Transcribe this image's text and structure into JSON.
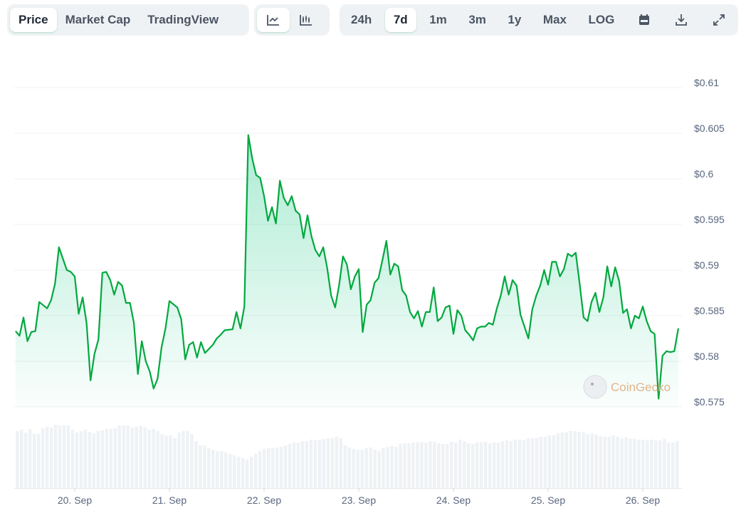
{
  "toolbar": {
    "view_tabs": [
      {
        "label": "Price",
        "active": true
      },
      {
        "label": "Market Cap",
        "active": false
      },
      {
        "label": "TradingView",
        "active": false
      }
    ],
    "chart_types": [
      {
        "icon": "line-chart-icon",
        "active": true
      },
      {
        "icon": "candlestick-chart-icon",
        "active": false
      }
    ],
    "ranges": [
      {
        "label": "24h",
        "active": false
      },
      {
        "label": "7d",
        "active": true
      },
      {
        "label": "1m",
        "active": false
      },
      {
        "label": "3m",
        "active": false
      },
      {
        "label": "1y",
        "active": false
      },
      {
        "label": "Max",
        "active": false
      },
      {
        "label": "LOG",
        "active": false
      }
    ],
    "actions": [
      {
        "icon": "calendar-icon"
      },
      {
        "icon": "download-icon"
      },
      {
        "icon": "fullscreen-icon"
      }
    ]
  },
  "watermark": "CoinGecko",
  "colors": {
    "line": "#00a83e",
    "volume": "#eff2f5",
    "grid": "#eef0f3",
    "accent": "#16c784"
  },
  "chart_data": {
    "type": "line",
    "ylim": [
      0.575,
      0.61
    ],
    "yticks": [
      "$0.575",
      "$0.58",
      "$0.585",
      "$0.59",
      "$0.595",
      "$0.6",
      "$0.605",
      "$0.61"
    ],
    "ytick_values": [
      0.575,
      0.58,
      0.585,
      0.59,
      0.595,
      0.6,
      0.605,
      0.61
    ],
    "xticks": [
      "20. Sep",
      "21. Sep",
      "22. Sep",
      "23. Sep",
      "24. Sep",
      "25. Sep",
      "26. Sep"
    ],
    "grid": true,
    "fill": "gradient",
    "series": [
      {
        "points": [
          [
            "19 Sep 09:00",
            0.5833
          ],
          [
            "19 Sep 10:00",
            0.5828
          ],
          [
            "19 Sep 11:00",
            0.5848
          ],
          [
            "19 Sep 12:00",
            0.5822
          ],
          [
            "19 Sep 13:00",
            0.5832
          ],
          [
            "19 Sep 14:00",
            0.5833
          ],
          [
            "19 Sep 15:00",
            0.5865
          ],
          [
            "19 Sep 17:00",
            0.5858
          ],
          [
            "19 Sep 18:00",
            0.5867
          ],
          [
            "19 Sep 19:00",
            0.5885
          ],
          [
            "19 Sep 20:00",
            0.5925
          ],
          [
            "19 Sep 22:00",
            0.59
          ],
          [
            "19 Sep 23:00",
            0.5898
          ],
          [
            "20 Sep 00:00",
            0.5893
          ],
          [
            "20 Sep 01:00",
            0.5852
          ],
          [
            "20 Sep 02:00",
            0.587
          ],
          [
            "20 Sep 03:00",
            0.5842
          ],
          [
            "20 Sep 04:00",
            0.5779
          ],
          [
            "20 Sep 05:00",
            0.5808
          ],
          [
            "20 Sep 06:00",
            0.5824
          ],
          [
            "20 Sep 07:00",
            0.5897
          ],
          [
            "20 Sep 08:00",
            0.5898
          ],
          [
            "20 Sep 09:00",
            0.5889
          ],
          [
            "20 Sep 10:00",
            0.5873
          ],
          [
            "20 Sep 11:00",
            0.5887
          ],
          [
            "20 Sep 12:00",
            0.5883
          ],
          [
            "20 Sep 13:00",
            0.5864
          ],
          [
            "20 Sep 14:00",
            0.5864
          ],
          [
            "20 Sep 15:00",
            0.5842
          ],
          [
            "20 Sep 16:00",
            0.5786
          ],
          [
            "20 Sep 17:00",
            0.5822
          ],
          [
            "20 Sep 18:00",
            0.58
          ],
          [
            "20 Sep 19:00",
            0.5789
          ],
          [
            "20 Sep 20:00",
            0.577
          ],
          [
            "20 Sep 21:00",
            0.5781
          ],
          [
            "20 Sep 22:00",
            0.5815
          ],
          [
            "20 Sep 23:00",
            0.5836
          ],
          [
            "21 Sep 00:00",
            0.5866
          ],
          [
            "21 Sep 02:00",
            0.5859
          ],
          [
            "21 Sep 03:00",
            0.5846
          ],
          [
            "21 Sep 04:00",
            0.5802
          ],
          [
            "21 Sep 05:00",
            0.5818
          ],
          [
            "21 Sep 06:00",
            0.5821
          ],
          [
            "21 Sep 07:00",
            0.5804
          ],
          [
            "21 Sep 08:00",
            0.5821
          ],
          [
            "21 Sep 09:00",
            0.5809
          ],
          [
            "21 Sep 11:00",
            0.5818
          ],
          [
            "21 Sep 12:00",
            0.5825
          ],
          [
            "21 Sep 13:00",
            0.5829
          ],
          [
            "21 Sep 14:00",
            0.5834
          ],
          [
            "21 Sep 16:00",
            0.5835
          ],
          [
            "21 Sep 17:00",
            0.5854
          ],
          [
            "21 Sep 18:00",
            0.5836
          ],
          [
            "21 Sep 19:00",
            0.586
          ],
          [
            "21 Sep 20:00",
            0.6048
          ],
          [
            "21 Sep 21:00",
            0.6022
          ],
          [
            "21 Sep 22:00",
            0.6004
          ],
          [
            "21 Sep 23:00",
            0.6001
          ],
          [
            "22 Sep 00:00",
            0.5981
          ],
          [
            "22 Sep 01:00",
            0.5954
          ],
          [
            "22 Sep 02:00",
            0.5969
          ],
          [
            "22 Sep 03:00",
            0.5951
          ],
          [
            "22 Sep 04:00",
            0.5998
          ],
          [
            "22 Sep 05:00",
            0.5979
          ],
          [
            "22 Sep 06:00",
            0.5971
          ],
          [
            "22 Sep 07:00",
            0.5981
          ],
          [
            "22 Sep 08:00",
            0.5965
          ],
          [
            "22 Sep 09:00",
            0.5961
          ],
          [
            "22 Sep 10:00",
            0.5935
          ],
          [
            "22 Sep 11:00",
            0.596
          ],
          [
            "22 Sep 12:00",
            0.5937
          ],
          [
            "22 Sep 13:00",
            0.5922
          ],
          [
            "22 Sep 14:00",
            0.5915
          ],
          [
            "22 Sep 15:00",
            0.5925
          ],
          [
            "22 Sep 16:00",
            0.5902
          ],
          [
            "22 Sep 17:00",
            0.5872
          ],
          [
            "22 Sep 18:00",
            0.5859
          ],
          [
            "22 Sep 19:00",
            0.5883
          ],
          [
            "22 Sep 20:00",
            0.5915
          ],
          [
            "22 Sep 21:00",
            0.5906
          ],
          [
            "22 Sep 22:00",
            0.5879
          ],
          [
            "22 Sep 23:00",
            0.5893
          ],
          [
            "23 Sep 00:00",
            0.5901
          ],
          [
            "23 Sep 01:00",
            0.5832
          ],
          [
            "23 Sep 02:00",
            0.5862
          ],
          [
            "23 Sep 03:00",
            0.5867
          ],
          [
            "23 Sep 04:00",
            0.5886
          ],
          [
            "23 Sep 05:00",
            0.5891
          ],
          [
            "23 Sep 06:00",
            0.5911
          ],
          [
            "23 Sep 07:00",
            0.5932
          ],
          [
            "23 Sep 08:00",
            0.5895
          ],
          [
            "23 Sep 09:00",
            0.5907
          ],
          [
            "23 Sep 10:00",
            0.5904
          ],
          [
            "23 Sep 11:00",
            0.5878
          ],
          [
            "23 Sep 12:00",
            0.5872
          ],
          [
            "23 Sep 13:00",
            0.5854
          ],
          [
            "23 Sep 14:00",
            0.5847
          ],
          [
            "23 Sep 15:00",
            0.5855
          ],
          [
            "23 Sep 16:00",
            0.5838
          ],
          [
            "23 Sep 17:00",
            0.5854
          ],
          [
            "23 Sep 18:00",
            0.5854
          ],
          [
            "23 Sep 19:00",
            0.5881
          ],
          [
            "23 Sep 20:00",
            0.5844
          ],
          [
            "23 Sep 21:00",
            0.5848
          ],
          [
            "23 Sep 22:00",
            0.5859
          ],
          [
            "23 Sep 23:00",
            0.5861
          ],
          [
            "24 Sep 00:00",
            0.583
          ],
          [
            "24 Sep 01:00",
            0.5856
          ],
          [
            "24 Sep 02:00",
            0.585
          ],
          [
            "24 Sep 03:00",
            0.5834
          ],
          [
            "24 Sep 04:00",
            0.5829
          ],
          [
            "24 Sep 05:00",
            0.5823
          ],
          [
            "24 Sep 06:00",
            0.5836
          ],
          [
            "24 Sep 07:00",
            0.5838
          ],
          [
            "24 Sep 08:00",
            0.5838
          ],
          [
            "24 Sep 09:00",
            0.5842
          ],
          [
            "24 Sep 10:00",
            0.584
          ],
          [
            "24 Sep 11:00",
            0.5858
          ],
          [
            "24 Sep 12:00",
            0.5872
          ],
          [
            "24 Sep 13:00",
            0.5893
          ],
          [
            "24 Sep 14:00",
            0.5873
          ],
          [
            "24 Sep 15:00",
            0.5889
          ],
          [
            "24 Sep 16:00",
            0.5883
          ],
          [
            "24 Sep 17:00",
            0.5851
          ],
          [
            "24 Sep 18:00",
            0.5838
          ],
          [
            "24 Sep 19:00",
            0.5825
          ],
          [
            "24 Sep 20:00",
            0.5857
          ],
          [
            "24 Sep 21:00",
            0.5872
          ],
          [
            "24 Sep 22:00",
            0.5883
          ],
          [
            "24 Sep 23:00",
            0.59
          ],
          [
            "25 Sep 00:00",
            0.5884
          ],
          [
            "25 Sep 01:00",
            0.5909
          ],
          [
            "25 Sep 02:00",
            0.5909
          ],
          [
            "25 Sep 03:00",
            0.5893
          ],
          [
            "25 Sep 04:00",
            0.5901
          ],
          [
            "25 Sep 05:00",
            0.5918
          ],
          [
            "25 Sep 06:00",
            0.5915
          ],
          [
            "25 Sep 07:00",
            0.5919
          ],
          [
            "25 Sep 08:00",
            0.5885
          ],
          [
            "25 Sep 09:00",
            0.5848
          ],
          [
            "25 Sep 10:00",
            0.5844
          ],
          [
            "25 Sep 11:00",
            0.5865
          ],
          [
            "25 Sep 12:00",
            0.5875
          ],
          [
            "25 Sep 13:00",
            0.5854
          ],
          [
            "25 Sep 14:00",
            0.587
          ],
          [
            "25 Sep 15:00",
            0.5904
          ],
          [
            "25 Sep 16:00",
            0.5882
          ],
          [
            "25 Sep 17:00",
            0.5903
          ],
          [
            "25 Sep 18:00",
            0.5888
          ],
          [
            "25 Sep 19:00",
            0.5853
          ],
          [
            "25 Sep 20:00",
            0.5857
          ],
          [
            "25 Sep 21:00",
            0.5836
          ],
          [
            "25 Sep 22:00",
            0.585
          ],
          [
            "25 Sep 23:00",
            0.5847
          ],
          [
            "26 Sep 00:00",
            0.586
          ],
          [
            "26 Sep 01:00",
            0.5844
          ],
          [
            "26 Sep 02:00",
            0.5833
          ],
          [
            "26 Sep 03:00",
            0.583
          ],
          [
            "26 Sep 04:00",
            0.5759
          ],
          [
            "26 Sep 05:00",
            0.5806
          ],
          [
            "26 Sep 06:00",
            0.5811
          ],
          [
            "26 Sep 07:00",
            0.581
          ],
          [
            "26 Sep 08:00",
            0.5811
          ],
          [
            "26 Sep 09:00",
            0.5836
          ]
        ]
      }
    ],
    "volume_relative": [
      80,
      82,
      78,
      83,
      76,
      76,
      84,
      86,
      85,
      89,
      88,
      88,
      88,
      82,
      78,
      80,
      82,
      79,
      77,
      80,
      81,
      83,
      83,
      84,
      88,
      88,
      88,
      85,
      86,
      87,
      85,
      82,
      83,
      80,
      76,
      74,
      74,
      70,
      78,
      80,
      80,
      76,
      66,
      60,
      60,
      56,
      54,
      52,
      52,
      50,
      48,
      46,
      44,
      42,
      40,
      44,
      48,
      52,
      55,
      56,
      56,
      57,
      58,
      60,
      62,
      64,
      64,
      66,
      66,
      68,
      67,
      68,
      69,
      70,
      70,
      72,
      70,
      60,
      57,
      55,
      54,
      54,
      56,
      57,
      54,
      52,
      56,
      58,
      59,
      58,
      62,
      63,
      63,
      64,
      64,
      65,
      64,
      66,
      65,
      63,
      62,
      62,
      65,
      64,
      68,
      66,
      63,
      62,
      64,
      64,
      65,
      63,
      64,
      64,
      66,
      67,
      66,
      68,
      68,
      67,
      70,
      70,
      70,
      72,
      72,
      74,
      74,
      77,
      78,
      78,
      80,
      80,
      79,
      78,
      76,
      77,
      75,
      73,
      72,
      72,
      74,
      72,
      70,
      71,
      69,
      69,
      68,
      68,
      67,
      68,
      67,
      67,
      69,
      64,
      64,
      66
    ]
  }
}
